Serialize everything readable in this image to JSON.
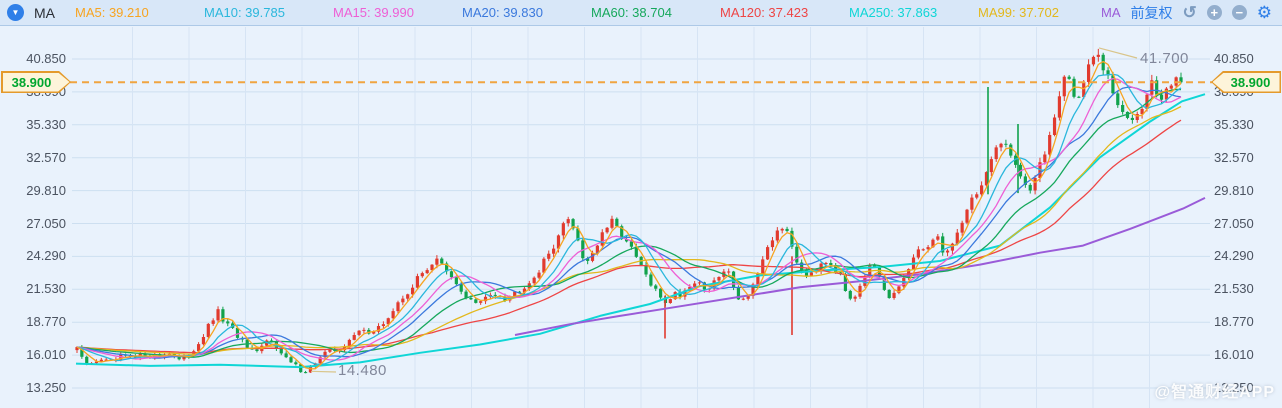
{
  "toolbar": {
    "indicator_label": "MA",
    "ma_items": [
      {
        "name": "MA5",
        "value": "39.210",
        "color": "#f7a421"
      },
      {
        "name": "MA10",
        "value": "39.785",
        "color": "#2ab7dc"
      },
      {
        "name": "MA15",
        "value": "39.990",
        "color": "#ee5fd5"
      },
      {
        "name": "MA20",
        "value": "39.830",
        "color": "#3b79dd"
      },
      {
        "name": "MA60",
        "value": "38.704",
        "color": "#16a85c"
      },
      {
        "name": "MA120",
        "value": "37.423",
        "color": "#ee4545"
      },
      {
        "name": "MA250",
        "value": "37.863",
        "color": "#0fd6d6"
      },
      {
        "name": "MA99",
        "value": "37.702",
        "color": "#e3b81c"
      }
    ],
    "ma_extra": {
      "name": "MA",
      "color": "#9a5bd8"
    },
    "adjust_mode": "前复权",
    "icon_names": [
      "undo-icon",
      "zoom-in-icon",
      "zoom-out-icon",
      "settings-icon"
    ]
  },
  "axis": {
    "labels": [
      "40.850",
      "38.090",
      "35.330",
      "32.570",
      "29.810",
      "27.050",
      "24.290",
      "21.530",
      "18.770",
      "16.010",
      "13.250"
    ],
    "step": 2.76
  },
  "price_line": {
    "value": "38.900",
    "price": 38.9,
    "color": "#f0a440"
  },
  "annotations": {
    "high": {
      "label": "41.700",
      "price": 41.7,
      "x": 1097
    },
    "low": {
      "label": "14.480",
      "price": 14.48,
      "x": 306
    }
  },
  "watermark": "@智通财经APP",
  "chart_data": {
    "type": "candlestick",
    "ylim": [
      13.25,
      40.85
    ],
    "up_color": "#e13a2e",
    "down_color": "#11a24c",
    "candle_count": 228,
    "key_prices": {
      "current": 38.9,
      "period_high": 41.7,
      "period_low": 14.48
    },
    "price_path": [
      [
        76,
        16.9
      ],
      [
        82,
        15.6
      ],
      [
        90,
        15.1
      ],
      [
        100,
        15.8
      ],
      [
        110,
        15.3
      ],
      [
        122,
        15.9
      ],
      [
        134,
        15.7
      ],
      [
        146,
        16.1
      ],
      [
        158,
        15.9
      ],
      [
        170,
        16.3
      ],
      [
        180,
        15.5
      ],
      [
        190,
        16.1
      ],
      [
        200,
        17.2
      ],
      [
        210,
        18.6
      ],
      [
        218,
        19.6
      ],
      [
        226,
        18.6
      ],
      [
        236,
        17.8
      ],
      [
        248,
        16.5
      ],
      [
        256,
        16.0
      ],
      [
        264,
        17.0
      ],
      [
        272,
        17.4
      ],
      [
        282,
        16.0
      ],
      [
        292,
        15.3
      ],
      [
        300,
        14.8
      ],
      [
        308,
        14.7
      ],
      [
        316,
        15.5
      ],
      [
        326,
        16.2
      ],
      [
        336,
        16.5
      ],
      [
        346,
        16.8
      ],
      [
        356,
        17.8
      ],
      [
        364,
        18.3
      ],
      [
        372,
        17.8
      ],
      [
        382,
        18.5
      ],
      [
        392,
        19.6
      ],
      [
        402,
        20.7
      ],
      [
        412,
        21.8
      ],
      [
        422,
        22.8
      ],
      [
        430,
        23.6
      ],
      [
        437,
        24.2
      ],
      [
        444,
        23.2
      ],
      [
        452,
        22.3
      ],
      [
        462,
        21.3
      ],
      [
        472,
        20.5
      ],
      [
        480,
        20.3
      ],
      [
        488,
        21.0
      ],
      [
        496,
        21.3
      ],
      [
        506,
        20.8
      ],
      [
        516,
        21.3
      ],
      [
        526,
        22.0
      ],
      [
        534,
        22.6
      ],
      [
        542,
        23.5
      ],
      [
        550,
        24.7
      ],
      [
        558,
        26.0
      ],
      [
        566,
        27.2
      ],
      [
        570,
        27.6
      ],
      [
        576,
        26.2
      ],
      [
        584,
        23.9
      ],
      [
        590,
        24.2
      ],
      [
        598,
        25.4
      ],
      [
        606,
        26.6
      ],
      [
        612,
        27.1
      ],
      [
        620,
        26.3
      ],
      [
        628,
        25.3
      ],
      [
        636,
        24.2
      ],
      [
        644,
        23.0
      ],
      [
        652,
        21.7
      ],
      [
        660,
        20.9
      ],
      [
        666,
        20.5
      ],
      [
        674,
        21.2
      ],
      [
        682,
        21.1
      ],
      [
        690,
        22.0
      ],
      [
        698,
        22.2
      ],
      [
        706,
        21.5
      ],
      [
        714,
        22.0
      ],
      [
        722,
        23.0
      ],
      [
        730,
        22.8
      ],
      [
        738,
        20.9
      ],
      [
        744,
        20.6
      ],
      [
        752,
        21.8
      ],
      [
        760,
        23.2
      ],
      [
        768,
        24.8
      ],
      [
        776,
        26.3
      ],
      [
        781,
        27.0
      ],
      [
        788,
        26.0
      ],
      [
        794,
        24.6
      ],
      [
        800,
        23.3
      ],
      [
        808,
        22.8
      ],
      [
        816,
        23.4
      ],
      [
        824,
        24.1
      ],
      [
        832,
        23.7
      ],
      [
        840,
        22.6
      ],
      [
        848,
        20.9
      ],
      [
        854,
        21.0
      ],
      [
        862,
        22.3
      ],
      [
        870,
        23.4
      ],
      [
        876,
        23.0
      ],
      [
        884,
        21.4
      ],
      [
        890,
        20.6
      ],
      [
        898,
        21.6
      ],
      [
        906,
        22.9
      ],
      [
        914,
        24.1
      ],
      [
        922,
        24.9
      ],
      [
        930,
        25.5
      ],
      [
        937,
        25.9
      ],
      [
        944,
        24.6
      ],
      [
        950,
        24.9
      ],
      [
        958,
        26.4
      ],
      [
        966,
        28.2
      ],
      [
        974,
        29.4
      ],
      [
        982,
        30.3
      ],
      [
        988,
        31.6
      ],
      [
        996,
        33.0
      ],
      [
        1004,
        34.0
      ],
      [
        1010,
        33.3
      ],
      [
        1016,
        32.0
      ],
      [
        1024,
        30.6
      ],
      [
        1030,
        29.9
      ],
      [
        1038,
        31.3
      ],
      [
        1046,
        33.3
      ],
      [
        1054,
        36.0
      ],
      [
        1060,
        38.3
      ],
      [
        1066,
        39.8
      ],
      [
        1070,
        39.0
      ],
      [
        1075,
        37.3
      ],
      [
        1080,
        38.1
      ],
      [
        1086,
        39.5
      ],
      [
        1092,
        40.8
      ],
      [
        1097,
        41.3
      ],
      [
        1102,
        40.3
      ],
      [
        1108,
        39.0
      ],
      [
        1114,
        37.8
      ],
      [
        1120,
        36.5
      ],
      [
        1126,
        35.7
      ],
      [
        1132,
        36.1
      ],
      [
        1138,
        36.6
      ],
      [
        1144,
        37.4
      ],
      [
        1150,
        39.2
      ],
      [
        1155,
        38.2
      ],
      [
        1160,
        37.3
      ],
      [
        1166,
        37.9
      ],
      [
        1172,
        38.9
      ],
      [
        1178,
        39.9
      ],
      [
        1182,
        38.9
      ]
    ],
    "spikes": [
      {
        "x": 665,
        "from": 21.0,
        "to": 17.4,
        "dir": "down"
      },
      {
        "x": 792,
        "from": 24.3,
        "to": 17.7,
        "dir": "down"
      },
      {
        "x": 988,
        "from": 38.5,
        "to": 29.5,
        "dir": "up"
      },
      {
        "x": 1018,
        "from": 35.4,
        "to": 29.6,
        "dir": "up"
      }
    ],
    "ma_computed": [
      {
        "name": "MA120",
        "window": 44,
        "color": "#ee4545"
      },
      {
        "name": "MA99",
        "window": 34,
        "color": "#e3b81c"
      },
      {
        "name": "MA60",
        "window": 24,
        "color": "#16a85c"
      },
      {
        "name": "MA20",
        "window": 16,
        "color": "#3b79dd"
      },
      {
        "name": "MA15",
        "window": 12,
        "color": "#ee5fd5"
      },
      {
        "name": "MA10",
        "window": 8,
        "color": "#2ab7dc"
      },
      {
        "name": "MA5",
        "window": 4,
        "color": "#f7a421"
      }
    ],
    "ma_anchored": [
      {
        "name": "MA250",
        "color": "#0fd6d6",
        "width": 2,
        "points": [
          [
            76,
            15.3
          ],
          [
            150,
            15.1
          ],
          [
            220,
            15.2
          ],
          [
            300,
            15.0
          ],
          [
            360,
            15.4
          ],
          [
            420,
            16.2
          ],
          [
            480,
            16.9
          ],
          [
            540,
            17.8
          ],
          [
            600,
            19.3
          ],
          [
            650,
            20.3
          ],
          [
            700,
            21.8
          ],
          [
            760,
            22.7
          ],
          [
            820,
            23.1
          ],
          [
            880,
            23.4
          ],
          [
            940,
            23.9
          ],
          [
            1000,
            25.2
          ],
          [
            1050,
            28.4
          ],
          [
            1100,
            32.6
          ],
          [
            1150,
            35.6
          ],
          [
            1182,
            37.3
          ],
          [
            1205,
            37.9
          ]
        ]
      },
      {
        "name": "MA",
        "color": "#9a5bd8",
        "width": 2,
        "points": [
          [
            515,
            17.7
          ],
          [
            570,
            18.6
          ],
          [
            620,
            19.3
          ],
          [
            680,
            20.1
          ],
          [
            740,
            20.9
          ],
          [
            800,
            21.7
          ],
          [
            860,
            22.2
          ],
          [
            920,
            22.8
          ],
          [
            980,
            23.6
          ],
          [
            1040,
            24.6
          ],
          [
            1083,
            25.2
          ],
          [
            1130,
            26.6
          ],
          [
            1183,
            28.3
          ],
          [
            1205,
            29.2
          ]
        ]
      }
    ]
  }
}
